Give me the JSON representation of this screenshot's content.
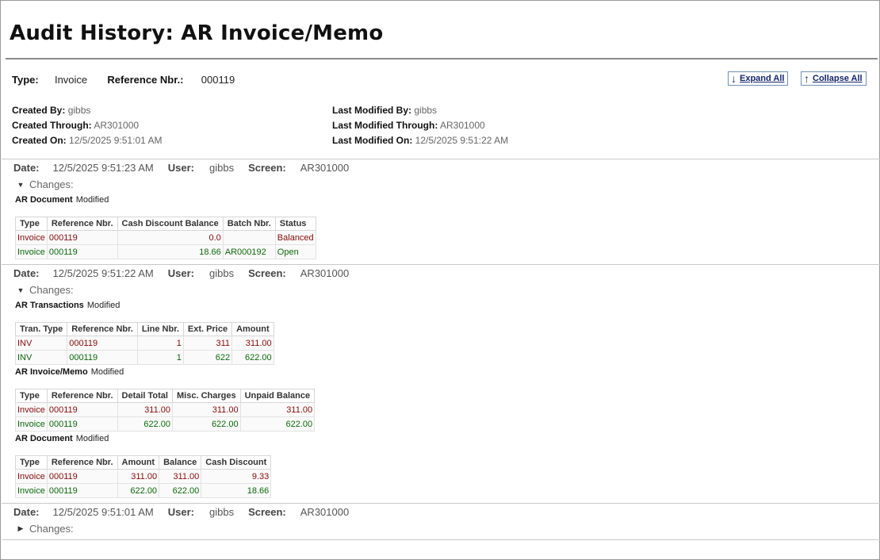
{
  "page": {
    "title": "Audit History: AR Invoice/Memo"
  },
  "header": {
    "type_label": "Type:",
    "type_value": "Invoice",
    "ref_label": "Reference Nbr.:",
    "ref_value": "000119",
    "expand_all": "Expand All",
    "collapse_all": "Collapse All"
  },
  "meta": {
    "created_by_label": "Created By:",
    "created_by": "gibbs",
    "created_through_label": "Created Through:",
    "created_through": "AR301000",
    "created_on_label": "Created On:",
    "created_on": "12/5/2025 9:51:01 AM",
    "last_modified_by_label": "Last Modified By:",
    "last_modified_by": "gibbs",
    "last_modified_through_label": "Last Modified Through:",
    "last_modified_through": "AR301000",
    "last_modified_on_label": "Last Modified On:",
    "last_modified_on": "12/5/2025 9:51:22 AM"
  },
  "labels": {
    "date": "Date:",
    "user": "User:",
    "screen": "Screen:",
    "changes": "Changes:"
  },
  "entries": [
    {
      "date": "12/5/2025 9:51:23 AM",
      "user": "gibbs",
      "screen": "AR301000",
      "objects": [
        {
          "name": "AR Document",
          "state": "Modified",
          "columns": [
            "Type",
            "Reference Nbr.",
            "Cash Discount Balance",
            "Batch Nbr.",
            "Status"
          ],
          "rows": [
            [
              "Invoice",
              "000119",
              "0.0",
              "",
              "Balanced"
            ],
            [
              "Invoice",
              "000119",
              "18.66",
              "AR000192",
              "Open"
            ]
          ]
        }
      ]
    },
    {
      "date": "12/5/2025 9:51:22 AM",
      "user": "gibbs",
      "screen": "AR301000",
      "objects": [
        {
          "name": "AR Transactions",
          "state": "Modified",
          "columns": [
            "Tran. Type",
            "Reference Nbr.",
            "Line Nbr.",
            "Ext. Price",
            "Amount"
          ],
          "rows": [
            [
              "INV",
              "000119",
              "1",
              "311",
              "311.00"
            ],
            [
              "INV",
              "000119",
              "1",
              "622",
              "622.00"
            ]
          ]
        },
        {
          "name": "AR Invoice/Memo",
          "state": "Modified",
          "columns": [
            "Type",
            "Reference Nbr.",
            "Detail Total",
            "Misc. Charges",
            "Unpaid Balance"
          ],
          "rows": [
            [
              "Invoice",
              "000119",
              "311.00",
              "311.00",
              "311.00"
            ],
            [
              "Invoice",
              "000119",
              "622.00",
              "622.00",
              "622.00"
            ]
          ]
        },
        {
          "name": "AR Document",
          "state": "Modified",
          "columns": [
            "Type",
            "Reference Nbr.",
            "Amount",
            "Balance",
            "Cash Discount"
          ],
          "rows": [
            [
              "Invoice",
              "000119",
              "311.00",
              "311.00",
              "9.33"
            ],
            [
              "Invoice",
              "000119",
              "622.00",
              "622.00",
              "18.66"
            ]
          ]
        }
      ]
    },
    {
      "date": "12/5/2025 9:51:01 AM",
      "user": "gibbs",
      "screen": "AR301000",
      "objects": []
    }
  ],
  "colors": {
    "old_value": "#8b0a0a",
    "new_value": "#0a6a0a",
    "link": "#14246e"
  }
}
